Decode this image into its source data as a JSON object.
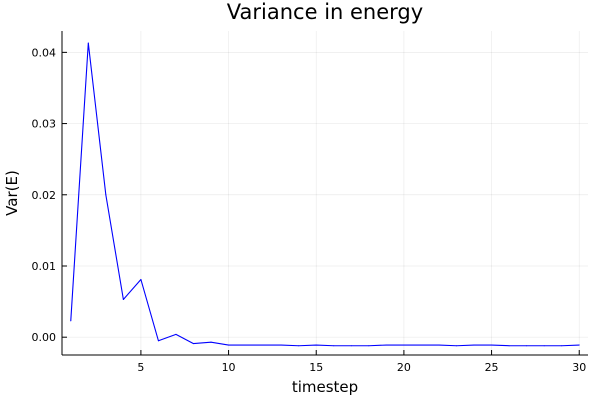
{
  "chart_data": {
    "type": "line",
    "title": "Variance in energy",
    "xlabel": "timestep",
    "ylabel": "Var(E)",
    "xlim": [
      0.5,
      30.5
    ],
    "ylim": [
      -0.0025,
      0.043
    ],
    "xticks": [
      5,
      10,
      15,
      20,
      25,
      30
    ],
    "xtick_labels": [
      "5",
      "10",
      "15",
      "20",
      "25",
      "30"
    ],
    "yticks": [
      0.0,
      0.01,
      0.02,
      0.03,
      0.04
    ],
    "ytick_labels": [
      "0.00",
      "0.01",
      "0.02",
      "0.03",
      "0.04"
    ],
    "grid": true,
    "legend": "none",
    "series": [
      {
        "color": "#0000ff",
        "x": [
          1,
          2,
          3,
          4,
          5,
          6,
          7,
          8,
          9,
          10,
          11,
          12,
          13,
          14,
          15,
          16,
          17,
          18,
          19,
          20,
          21,
          22,
          23,
          24,
          25,
          26,
          27,
          28,
          29,
          30
        ],
        "y": [
          0.0023,
          0.0413,
          0.02,
          0.0053,
          0.0081,
          -0.0005,
          0.0004,
          -0.0009,
          -0.0007,
          -0.0011,
          -0.0011,
          -0.0011,
          -0.0011,
          -0.0012,
          -0.0011,
          -0.0012,
          -0.0012,
          -0.0012,
          -0.0011,
          -0.0011,
          -0.0011,
          -0.0011,
          -0.0012,
          -0.0011,
          -0.0011,
          -0.0012,
          -0.0012,
          -0.0012,
          -0.0012,
          -0.0011
        ]
      }
    ]
  }
}
